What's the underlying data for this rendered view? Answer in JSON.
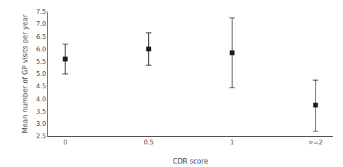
{
  "chart_data": {
    "type": "scatter",
    "categories": [
      "0",
      "0.5",
      "1",
      ">=2"
    ],
    "values": [
      5.6,
      6.0,
      5.85,
      3.75
    ],
    "ci_lower": [
      5.0,
      5.35,
      4.45,
      2.7
    ],
    "ci_upper": [
      6.2,
      6.65,
      7.25,
      4.75
    ],
    "xlabel": "CDR score",
    "ylabel": "Mean number of GP visits per year",
    "ylim": [
      2.5,
      7.5
    ],
    "yticks": [
      2.5,
      {
        "value": 3.0,
        "label": "3.0"
      },
      3.5,
      {
        "value": 4.0,
        "label": "4.0"
      },
      4.5,
      {
        "value": 5.0,
        "label": "5.0"
      },
      5.5,
      {
        "value": 6.0,
        "label": "6.0"
      },
      6.5,
      {
        "value": 7.0,
        "label": "7.0"
      },
      7.5
    ],
    "color": "#1a1a1a",
    "marker": "square",
    "line_style": "none",
    "grid": false
  }
}
